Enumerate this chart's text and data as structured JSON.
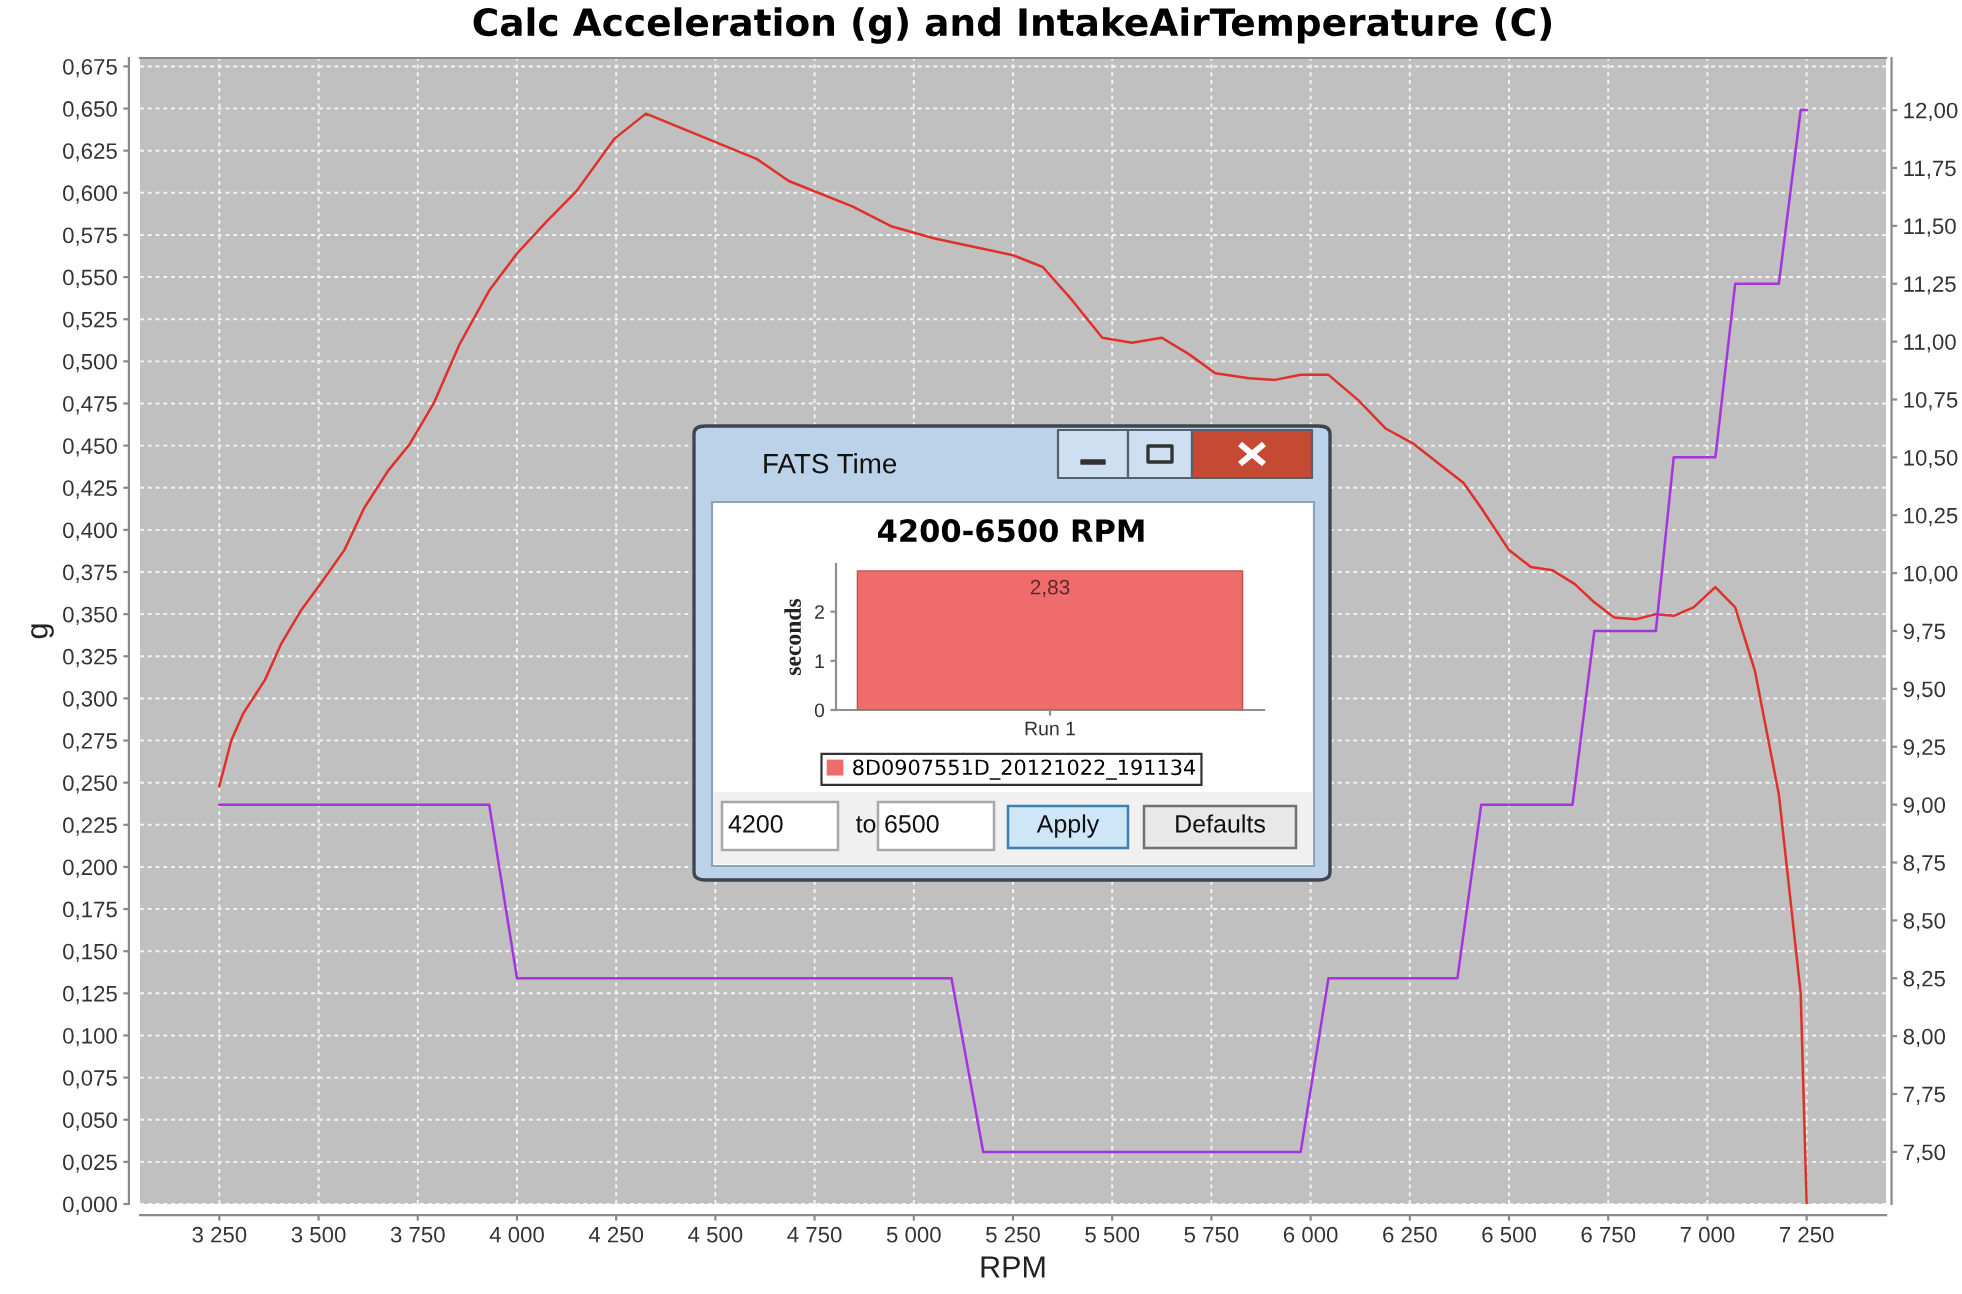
{
  "chart_data": [
    {
      "type": "line",
      "title": "Calc Acceleration (g) and IntakeAirTemperature (C)",
      "xlabel": "RPM",
      "ylabel": "g",
      "series": [
        {
          "color": "#e0302a",
          "x": [
            3250,
            3280,
            3310,
            3365,
            3405,
            3455,
            3505,
            3565,
            3615,
            3675,
            3730,
            3790,
            3855,
            3930,
            4000,
            4075,
            4150,
            4245,
            4325,
            4605,
            4685,
            4845,
            4945,
            5050,
            5150,
            5250,
            5325,
            5400,
            5475,
            5550,
            5625,
            5695,
            5760,
            5845,
            5910,
            5975,
            6045,
            6120,
            6190,
            6260,
            6325,
            6385,
            6430,
            6500,
            6555,
            6610,
            6665,
            6715,
            6765,
            6820,
            6870,
            6915,
            6965,
            7020,
            7070,
            7120,
            7180,
            7235,
            7250
          ],
          "values": [
            0.248,
            0.275,
            0.291,
            0.311,
            0.332,
            0.352,
            0.368,
            0.388,
            0.413,
            0.435,
            0.451,
            0.475,
            0.51,
            0.542,
            0.564,
            0.583,
            0.601,
            0.632,
            0.647,
            0.62,
            0.607,
            0.592,
            0.58,
            0.573,
            0.568,
            0.563,
            0.556,
            0.536,
            0.514,
            0.511,
            0.514,
            0.504,
            0.493,
            0.49,
            0.489,
            0.492,
            0.492,
            0.477,
            0.46,
            0.451,
            0.439,
            0.428,
            0.413,
            0.388,
            0.378,
            0.376,
            0.368,
            0.357,
            0.348,
            0.347,
            0.35,
            0.349,
            0.354,
            0.366,
            0.354,
            0.316,
            0.243,
            0.125,
            0.0
          ]
        },
        {
          "color": "#a533e0",
          "axis": "y2",
          "x": [
            3250,
            3930,
            4000,
            5095,
            5175,
            5975,
            6045,
            6370,
            6430,
            6660,
            6715,
            6870,
            6915,
            7020,
            7070,
            7180,
            7235,
            7250
          ],
          "values": [
            9.0,
            9.0,
            8.25,
            8.25,
            7.5,
            7.5,
            8.25,
            8.25,
            9.0,
            9.0,
            9.75,
            9.75,
            10.5,
            10.5,
            11.25,
            11.25,
            12.0,
            12.0
          ]
        }
      ],
      "xlim": [
        3050,
        7450
      ],
      "xticks": [
        {
          "value": 3250,
          "label": "3 250"
        },
        {
          "value": 3500,
          "label": "3 500"
        },
        {
          "value": 3750,
          "label": "3 750"
        },
        {
          "value": 4000,
          "label": "4 000"
        },
        {
          "value": 4250,
          "label": "4 250"
        },
        {
          "value": 4500,
          "label": "4 500"
        },
        {
          "value": 4750,
          "label": "4 750"
        },
        {
          "value": 5000,
          "label": "5 000"
        },
        {
          "value": 5250,
          "label": "5 250"
        },
        {
          "value": 5500,
          "label": "5 500"
        },
        {
          "value": 5750,
          "label": "5 750"
        },
        {
          "value": 6000,
          "label": "6 000"
        },
        {
          "value": 6250,
          "label": "6 250"
        },
        {
          "value": 6500,
          "label": "6 500"
        },
        {
          "value": 6750,
          "label": "6 750"
        },
        {
          "value": 7000,
          "label": "7 000"
        },
        {
          "value": 7250,
          "label": "7 250"
        }
      ],
      "ylim": [
        0,
        0.68
      ],
      "yticks": [
        {
          "value": 0,
          "label": "0,000"
        },
        {
          "value": 0.025,
          "label": "0,025"
        },
        {
          "value": 0.05,
          "label": "0,050"
        },
        {
          "value": 0.075,
          "label": "0,075"
        },
        {
          "value": 0.1,
          "label": "0,100"
        },
        {
          "value": 0.125,
          "label": "0,125"
        },
        {
          "value": 0.15,
          "label": "0,150"
        },
        {
          "value": 0.175,
          "label": "0,175"
        },
        {
          "value": 0.2,
          "label": "0,200"
        },
        {
          "value": 0.225,
          "label": "0,225"
        },
        {
          "value": 0.25,
          "label": "0,250"
        },
        {
          "value": 0.275,
          "label": "0,275"
        },
        {
          "value": 0.3,
          "label": "0,300"
        },
        {
          "value": 0.325,
          "label": "0,325"
        },
        {
          "value": 0.35,
          "label": "0,350"
        },
        {
          "value": 0.375,
          "label": "0,375"
        },
        {
          "value": 0.4,
          "label": "0,400"
        },
        {
          "value": 0.425,
          "label": "0,425"
        },
        {
          "value": 0.45,
          "label": "0,450"
        },
        {
          "value": 0.475,
          "label": "0,475"
        },
        {
          "value": 0.5,
          "label": "0,500"
        },
        {
          "value": 0.525,
          "label": "0,525"
        },
        {
          "value": 0.55,
          "label": "0,550"
        },
        {
          "value": 0.575,
          "label": "0,575"
        },
        {
          "value": 0.6,
          "label": "0,600"
        },
        {
          "value": 0.625,
          "label": "0,625"
        },
        {
          "value": 0.65,
          "label": "0,650"
        },
        {
          "value": 0.675,
          "label": "0,675"
        }
      ],
      "y2lim": [
        7.275,
        12.225
      ],
      "y2ticks": [
        {
          "value": 7.5,
          "label": "7,50"
        },
        {
          "value": 7.75,
          "label": "7,75"
        },
        {
          "value": 8,
          "label": "8,00"
        },
        {
          "value": 8.25,
          "label": "8,25"
        },
        {
          "value": 8.5,
          "label": "8,50"
        },
        {
          "value": 8.75,
          "label": "8,75"
        },
        {
          "value": 9,
          "label": "9,00"
        },
        {
          "value": 9.25,
          "label": "9,25"
        },
        {
          "value": 9.5,
          "label": "9,50"
        },
        {
          "value": 9.75,
          "label": "9,75"
        },
        {
          "value": 10,
          "label": "10,00"
        },
        {
          "value": 10.25,
          "label": "10,25"
        },
        {
          "value": 10.5,
          "label": "10,50"
        },
        {
          "value": 10.75,
          "label": "10,75"
        },
        {
          "value": 11,
          "label": "11,00"
        },
        {
          "value": 11.25,
          "label": "11,25"
        },
        {
          "value": 11.5,
          "label": "11,50"
        },
        {
          "value": 11.75,
          "label": "11,75"
        },
        {
          "value": 12,
          "label": "12,00"
        }
      ],
      "grid": true,
      "line_style": "solid"
    },
    {
      "type": "bar",
      "title": "4200-6500 RPM",
      "ylabel": "seconds",
      "categories": [
        "Run 1"
      ],
      "series": [
        {
          "name": "8D0907551D_20121022_191134",
          "color": "#f06c6c",
          "values": [
            2.83
          ],
          "value_labels": [
            "2,83"
          ]
        }
      ],
      "ylim": [
        0,
        2.97
      ],
      "yticks": [
        0,
        1,
        2
      ],
      "legend": "bottom",
      "annotations": [
        "FATS Time",
        "4200",
        "to",
        "6500",
        "Apply",
        "Defaults"
      ]
    }
  ]
}
